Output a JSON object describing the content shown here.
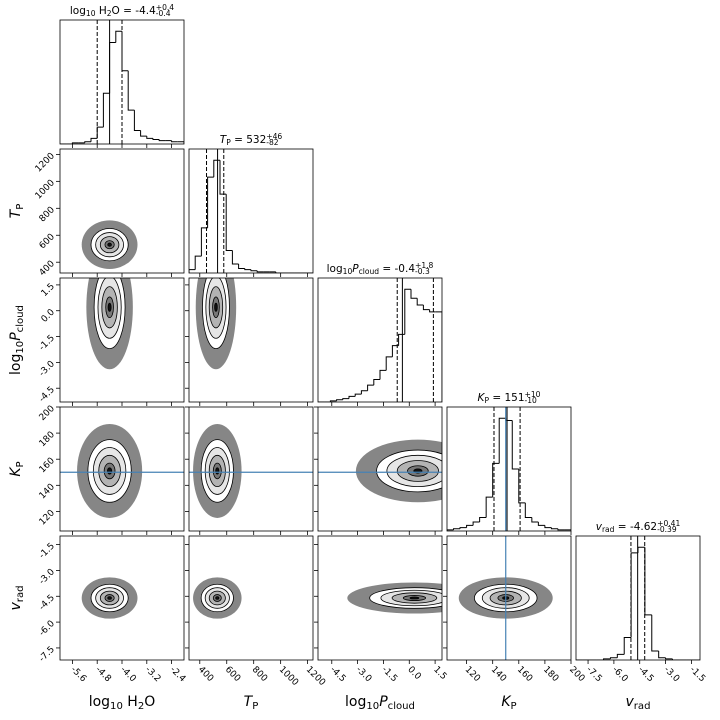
{
  "chart_data": {
    "type": "corner",
    "params": [
      {
        "label": [
          {
            "t": "log"
          },
          {
            "t": "10",
            "sub": true
          },
          {
            "t": " H"
          },
          {
            "t": "2",
            "sub": true
          },
          {
            "t": "O"
          }
        ],
        "title": [
          {
            "t": "log"
          },
          {
            "t": "10",
            "sub": true
          },
          {
            "t": " H"
          },
          {
            "t": "2",
            "sub": true
          },
          {
            "t": "O = -4.4"
          },
          {
            "t": "+0.4",
            "sup": true
          },
          {
            "t": "-0.4",
            "sub": true
          }
        ],
        "range": [
          -6,
          -2
        ],
        "ticks": [
          -5.6,
          -4.8,
          {
            "value": -4,
            "label": "-4.0"
          },
          -3.2,
          -2.4
        ],
        "bins": [
          -6,
          -5.8,
          -5.6,
          -5.4,
          -5.2,
          -5,
          -4.8,
          -4.6,
          -4.4,
          -4.2,
          -4,
          -3.8,
          -3.6,
          -3.4,
          -3.2,
          -3,
          -2.8,
          -2.6,
          -2.4,
          -2.2,
          -2
        ],
        "counts": [
          0,
          0,
          1,
          1,
          2,
          5,
          15,
          45,
          90,
          100,
          65,
          30,
          12,
          7,
          5,
          4,
          3,
          3,
          2,
          2
        ],
        "quantiles": [
          -4.8,
          -4.4,
          -4.0
        ]
      },
      {
        "label": [
          {
            "t": "T",
            "it": true
          },
          {
            "t": "P",
            "sub": true
          }
        ],
        "title": [
          {
            "t": "T",
            "it": true
          },
          {
            "t": "P",
            "sub": true
          },
          {
            "t": " = 532"
          },
          {
            "t": "+46",
            "sup": true
          },
          {
            "t": "-82",
            "sub": true
          }
        ],
        "range": [
          320,
          1240
        ],
        "ticks": [
          400,
          600,
          800,
          1000,
          1200
        ],
        "bins": [
          320,
          366,
          412,
          458,
          504,
          550,
          596,
          642,
          688,
          734,
          780,
          826,
          872,
          918,
          964,
          1010,
          1056,
          1102,
          1148,
          1194,
          1240
        ],
        "counts": [
          3,
          15,
          40,
          85,
          100,
          70,
          20,
          8,
          4,
          3,
          2,
          1,
          1,
          1,
          0,
          0,
          0,
          0,
          0,
          0
        ],
        "quantiles": [
          450,
          532,
          578
        ]
      },
      {
        "label": [
          {
            "t": "log"
          },
          {
            "t": "10",
            "sub": true
          },
          {
            "t": "P",
            "it": true
          },
          {
            "t": "cloud",
            "sub": true
          }
        ],
        "title": [
          {
            "t": "log"
          },
          {
            "t": "10",
            "sub": true
          },
          {
            "t": "P",
            "it": true
          },
          {
            "t": "cloud",
            "sub": true
          },
          {
            "t": " = -0.4"
          },
          {
            "t": "+1.8",
            "sup": true
          },
          {
            "t": "-0.3",
            "sub": true
          }
        ],
        "range": [
          -5.3,
          1.9
        ],
        "ticks": [
          -4.5,
          {
            "value": -3,
            "label": "-3.0"
          },
          -1.5,
          {
            "value": 0,
            "label": "0.0"
          },
          1.5
        ],
        "bins": [
          -5.3,
          -4.94,
          -4.58,
          -4.22,
          -3.86,
          -3.5,
          -3.14,
          -2.78,
          -2.42,
          -2.06,
          -1.7,
          -1.34,
          -0.98,
          -0.62,
          -0.26,
          0.1,
          0.46,
          0.82,
          1.18,
          1.54,
          1.9
        ],
        "counts": [
          0,
          0,
          1,
          2,
          3,
          5,
          7,
          10,
          15,
          20,
          28,
          40,
          50,
          60,
          100,
          92,
          86,
          82,
          80,
          80
        ],
        "quantiles": [
          -0.7,
          -0.4,
          1.4
        ]
      },
      {
        "label": [
          {
            "t": "K",
            "it": true
          },
          {
            "t": "P",
            "sub": true
          }
        ],
        "title": [
          {
            "t": "K",
            "it": true
          },
          {
            "t": "P",
            "sub": true
          },
          {
            "t": " = 151"
          },
          {
            "t": "+10",
            "sup": true
          },
          {
            "t": "-10",
            "sub": true
          }
        ],
        "range": [
          105,
          200
        ],
        "ticks": [
          120,
          140,
          160,
          180,
          200
        ],
        "bins": [
          105,
          110,
          115,
          120,
          125,
          130,
          135,
          140,
          145,
          150,
          155,
          160,
          165,
          170,
          175,
          180,
          185,
          190,
          195,
          200
        ],
        "counts": [
          1,
          2,
          3,
          5,
          8,
          12,
          30,
          60,
          100,
          98,
          55,
          25,
          12,
          8,
          5,
          3,
          2,
          1,
          1
        ],
        "quantiles": [
          141,
          151,
          161
        ]
      },
      {
        "label": [
          {
            "t": "v",
            "it": true
          },
          {
            "t": "rad",
            "sub": true
          }
        ],
        "title": [
          {
            "t": "v",
            "it": true
          },
          {
            "t": "rad",
            "sub": true
          },
          {
            "t": " = -4.62"
          },
          {
            "t": "+0.41",
            "sup": true
          },
          {
            "t": "-0.39",
            "sub": true
          }
        ],
        "range": [
          -8.2,
          -1.0
        ],
        "ticks": [
          -7.5,
          {
            "value": -6,
            "label": "-6.0"
          },
          -4.5,
          {
            "value": -3,
            "label": "-3.0"
          },
          -1.5
        ],
        "bins": [
          -8.2,
          -7.8,
          -7.4,
          -7,
          -6.6,
          -6.2,
          -5.8,
          -5.4,
          -5,
          -4.6,
          -4.2,
          -3.8,
          -3.4,
          -3,
          -2.6,
          -2.2,
          -1.8,
          -1.4,
          -1
        ],
        "counts": [
          0,
          0,
          0,
          0,
          1,
          2,
          5,
          20,
          95,
          100,
          40,
          8,
          2,
          1,
          0,
          0,
          0,
          0
        ],
        "quantiles": [
          -5.01,
          -4.62,
          -4.21
        ]
      }
    ],
    "hist_ylim": [
      0,
      110
    ],
    "truths": {
      "values": [
        null,
        null,
        null,
        150,
        null
      ],
      "color": "#4682b4"
    },
    "pairs": [
      {
        "x": 0,
        "y": 1,
        "center": [
          -4.4,
          530
        ],
        "sigma": [
          0.3,
          60
        ]
      },
      {
        "x": 0,
        "y": 2,
        "center": [
          -4.4,
          0.2
        ],
        "sigma": [
          0.25,
          1.2
        ]
      },
      {
        "x": 1,
        "y": 2,
        "center": [
          520,
          0.2
        ],
        "sigma": [
          50,
          1.2
        ]
      },
      {
        "x": 0,
        "y": 3,
        "center": [
          -4.4,
          151
        ],
        "sigma": [
          0.35,
          12
        ]
      },
      {
        "x": 1,
        "y": 3,
        "center": [
          530,
          151
        ],
        "sigma": [
          60,
          12
        ]
      },
      {
        "x": 2,
        "y": 3,
        "center": [
          0.5,
          151
        ],
        "sigma": [
          1.2,
          8
        ]
      },
      {
        "x": 0,
        "y": 4,
        "center": [
          -4.4,
          -4.6
        ],
        "sigma": [
          0.3,
          0.4
        ]
      },
      {
        "x": 1,
        "y": 4,
        "center": [
          530,
          -4.6
        ],
        "sigma": [
          60,
          0.4
        ]
      },
      {
        "x": 2,
        "y": 4,
        "center": [
          0.3,
          -4.6
        ],
        "sigma": [
          1.3,
          0.3
        ]
      },
      {
        "x": 3,
        "y": 4,
        "center": [
          150,
          -4.6
        ],
        "sigma": [
          12,
          0.4
        ]
      }
    ]
  }
}
